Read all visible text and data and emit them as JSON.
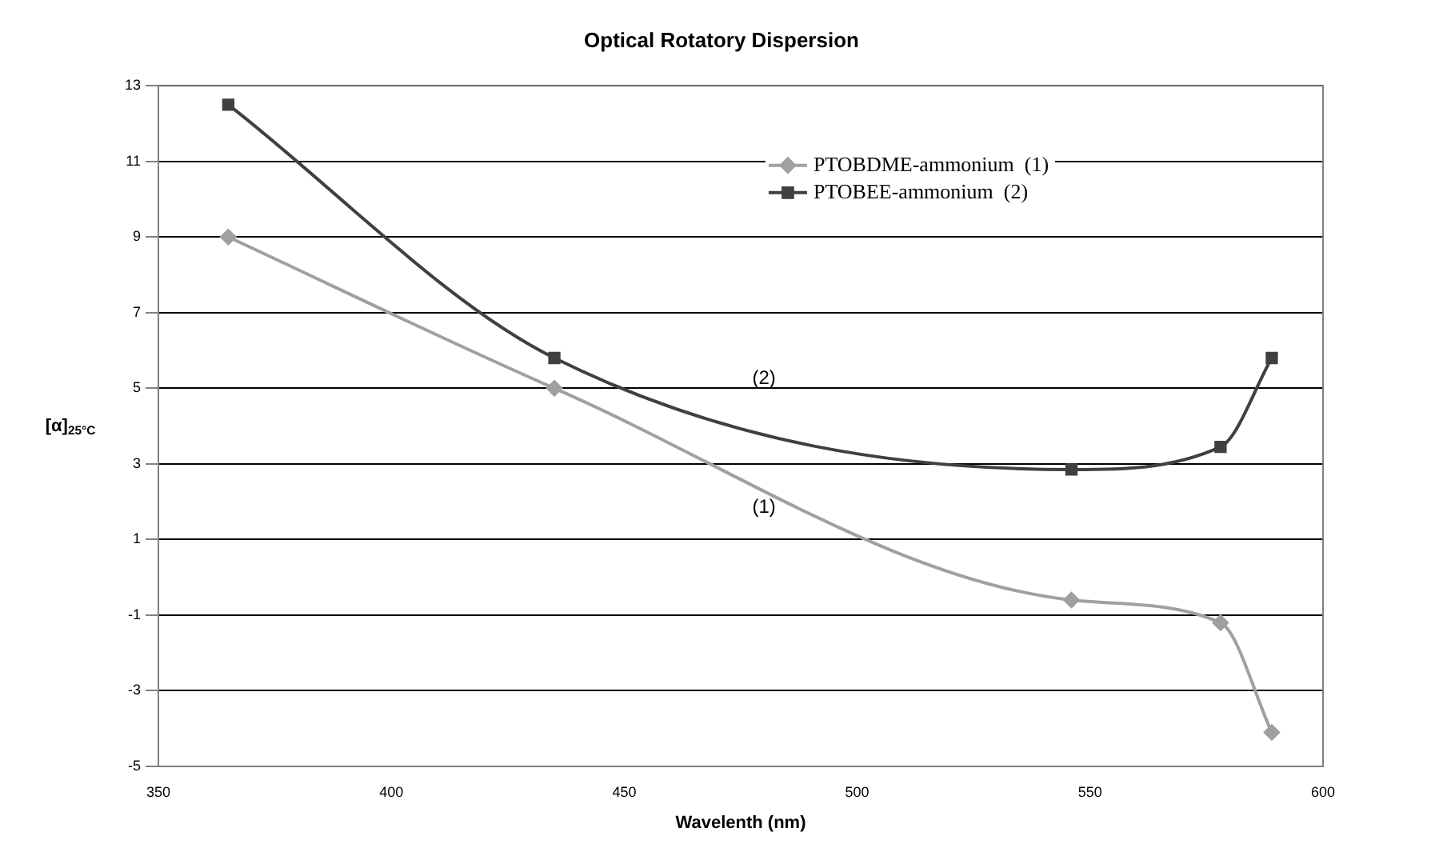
{
  "chart_data": {
    "type": "line",
    "title": "Optical Rotatory Dispersion",
    "xlabel": "Wavelenth (nm)",
    "ylabel": "[α]$_{25°C}$",
    "x": [
      365,
      435,
      546,
      578,
      589
    ],
    "series": [
      {
        "name": "PTOBDME-ammonium  (1)",
        "color": "#a0a0a0",
        "marker": "diamond",
        "values": [
          9,
          5,
          -0.6,
          -1.2,
          -4.1
        ]
      },
      {
        "name": "PTOBEE-ammonium  (2)",
        "color": "#404040",
        "marker": "square",
        "values": [
          12.5,
          5.8,
          2.85,
          3.45,
          5.8
        ]
      }
    ],
    "annotations": [
      "(2)",
      "(1)"
    ],
    "xlim": [
      350,
      600
    ],
    "xticks": [
      350,
      400,
      450,
      500,
      550,
      600
    ],
    "ylim": [
      -5,
      13
    ],
    "yticks": [
      -5,
      -3,
      -1,
      1,
      3,
      5,
      7,
      9,
      11,
      13
    ],
    "grid": "y",
    "legend": "top right",
    "line_style": "solid"
  }
}
